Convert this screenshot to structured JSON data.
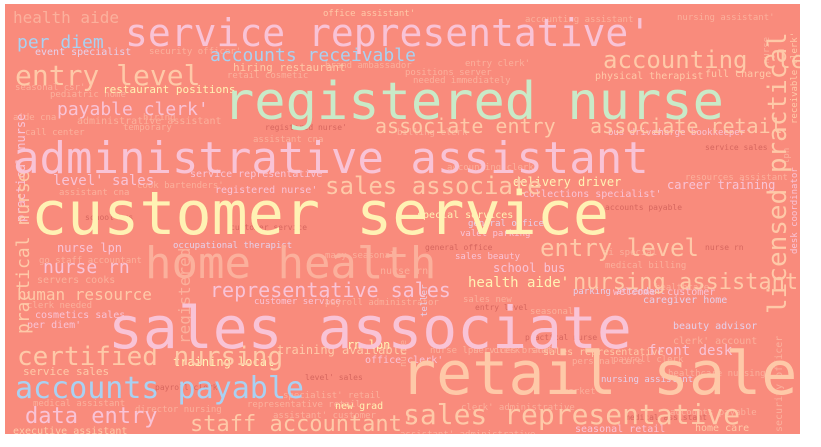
{
  "colors": {
    "background": "#f98b7c",
    "peach": "#fec9a8",
    "pink": "#f9c3d6",
    "cream": "#fff2b4",
    "mint": "#c9eac8",
    "blue": "#a9d1f2",
    "salmon": "#fbb09c",
    "lavender": "#e5d0ea",
    "dark": "#d7675f"
  },
  "words": [
    "customer service",
    "retail sales",
    "sales associate",
    "registered nurse",
    "administrative assistant",
    "service representative'",
    "home health",
    "accounts payable",
    "sales representative",
    "certified nursing",
    "entry level",
    "accounting clerk",
    "licensed practical",
    "sales associate",
    "entry level",
    "nursing assistant",
    "representative sales",
    "associate entry",
    "associate retail",
    "accounts receivable",
    "payable clerk'",
    "nurse rn",
    "data entry",
    "staff accountant'",
    "practical nurse",
    "human resource",
    "per diem",
    "health aide",
    "level' sales",
    "health aide'",
    "front desk",
    "training available",
    "home care",
    "security officer",
    "caregiver home",
    "school bus",
    "career training",
    "delivery driver",
    "beauty advisor",
    "nurse lpn",
    "rn lpn",
    "new grad",
    "practical nurse",
    "receivable clerk'",
    "registered",
    "training local",
    "sales new",
    "clerk' account",
    "desk coordinator",
    "service sales",
    "restaurant positions",
    "event specialist",
    "hiring restaurant",
    "administrative assistant",
    "retail cosmetic",
    "service representative",
    "registered nurse'",
    "occupational therapist",
    "physical therapist",
    "full charge",
    "bus driver",
    "charge bookkeeper'",
    "special services",
    "general office",
    "valet parking",
    "sales beauty",
    "parking attendant",
    "welcome' customer",
    "healthcare nursing",
    "executive assistant",
    "medical assistant",
    "seasonal retail",
    "office assistant'",
    "customer service",
    "payroll administrator",
    "nursing assistant",
    "personal care",
    "payroll clerk",
    "clerk needed",
    "cosmetics sales",
    "per diem'",
    "go staff accountant",
    "servers cooks",
    "security officer'",
    "pediatric home",
    "seasonal csr'",
    "positions server",
    "needed immediately",
    "brand ambassador",
    "collections specialist'",
    "resources assistant",
    "medical billing",
    "nursing assistant'",
    "accounting clerk",
    "cook bartenders'",
    "assistant cna",
    "specialist' retail",
    "office clerk'",
    "nurse lpn'",
    "services brand",
    "clerk' administrative",
    "assistant' customer",
    "representative retail",
    "assistant' administrative",
    "hiring",
    "clerk' staff",
    "market",
    "call center",
    "aide cna",
    "billing clerk",
    "assistant cna",
    "temporary",
    "sales representative'",
    "nurse",
    "nurse rn",
    "seasonal",
    "nurse",
    "lpn",
    "di special",
    "teller",
    "macy seasonal",
    "healthcare",
    "director nursing",
    "accounting assistant",
    "accounts payable",
    "entry clerk'"
  ]
}
